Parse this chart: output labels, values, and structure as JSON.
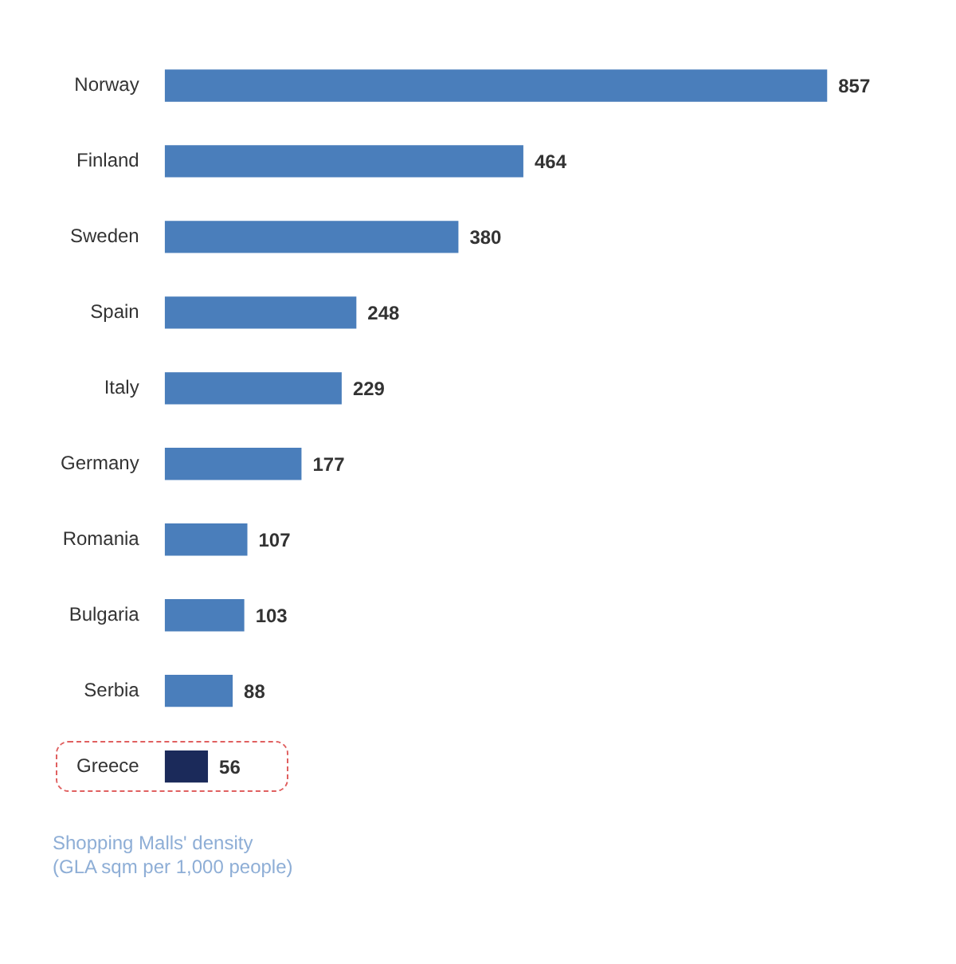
{
  "chart_data": {
    "type": "bar",
    "orientation": "horizontal",
    "categories": [
      "Norway",
      "Finland",
      "Sweden",
      "Spain",
      "Italy",
      "Germany",
      "Romania",
      "Bulgaria",
      "Serbia",
      "Greece"
    ],
    "values": [
      857,
      464,
      380,
      248,
      229,
      177,
      107,
      103,
      88,
      56
    ],
    "colors": [
      "#4a7ebb",
      "#4a7ebb",
      "#4a7ebb",
      "#4a7ebb",
      "#4a7ebb",
      "#4a7ebb",
      "#4a7ebb",
      "#4a7ebb",
      "#4a7ebb",
      "#1b2a5a"
    ],
    "data_labels": true,
    "tick_labels": "y",
    "annotations": [
      "Shopping Malls' density",
      "(GLA sqm per 1,000 people)"
    ]
  }
}
